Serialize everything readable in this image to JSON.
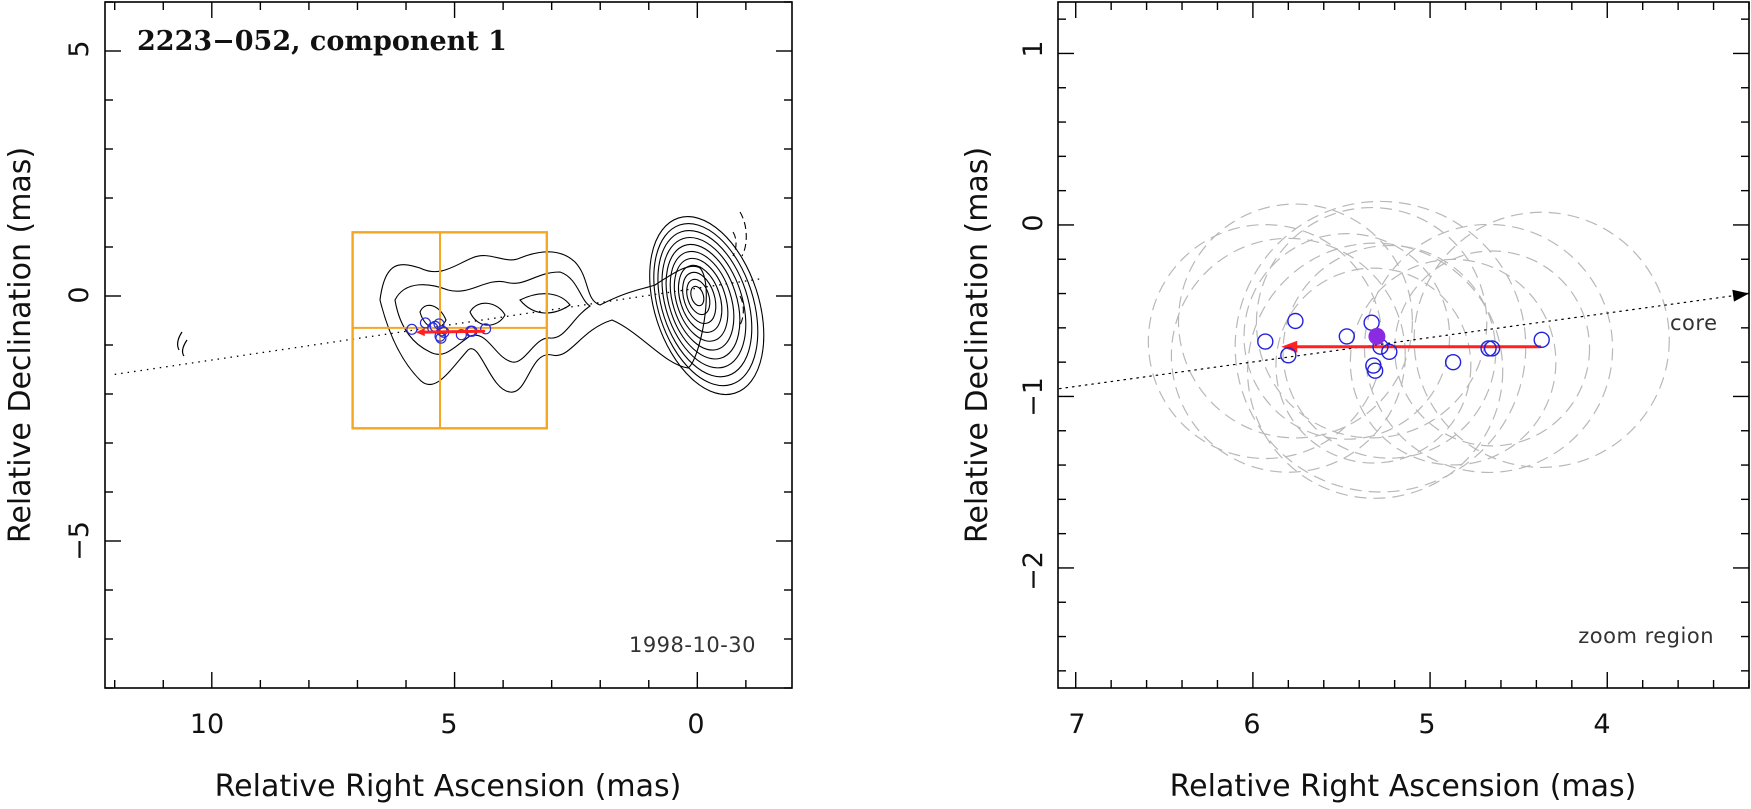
{
  "chart_data": [
    {
      "type": "contour",
      "title": "2223−052, component 1",
      "date": "1998-10-30",
      "xlabel": "Relative Right Ascension (mas)",
      "ylabel": "Relative Declination (mas)",
      "xlim": [
        12.2,
        -1.95
      ],
      "ylim": [
        -8.0,
        6.0
      ],
      "xticks": [
        10,
        5,
        0
      ],
      "xtick_labels": [
        "10",
        "5",
        "0"
      ],
      "yticks": [
        5,
        0,
        -5
      ],
      "ytick_labels": [
        "5",
        "0",
        "−5"
      ],
      "core_position": [
        0,
        0
      ],
      "jet_axis": {
        "from": [
          12.0,
          -1.6
        ],
        "to": [
          -1.3,
          0.35
        ]
      },
      "zoom_box": {
        "x": [
          7.1,
          3.1
        ],
        "y": [
          -2.7,
          1.3
        ],
        "crosshair": [
          5.3,
          -0.65
        ]
      },
      "component_positions": [
        [
          5.88,
          -0.68
        ],
        [
          5.6,
          -0.55
        ],
        [
          5.45,
          -0.65
        ],
        [
          5.4,
          -0.62
        ],
        [
          5.32,
          -0.57
        ],
        [
          5.3,
          -0.82
        ],
        [
          5.28,
          -0.86
        ],
        [
          5.26,
          -0.71
        ],
        [
          5.22,
          -0.74
        ],
        [
          4.86,
          -0.79
        ],
        [
          4.67,
          -0.72
        ],
        [
          4.64,
          -0.72
        ],
        [
          4.36,
          -0.67
        ]
      ],
      "motion_vector": {
        "from": [
          4.4,
          -0.72
        ],
        "to": [
          5.8,
          -0.74
        ],
        "color": "#ff2020"
      }
    },
    {
      "type": "scatter",
      "annotation_core": "core",
      "annotation_region": "zoom region",
      "xlabel": "Relative Right Ascension (mas)",
      "ylabel": "Relative Declination (mas)",
      "xlim": [
        7.1,
        3.2
      ],
      "ylim": [
        -2.7,
        1.3
      ],
      "xticks": [
        7,
        6,
        5,
        4
      ],
      "xtick_labels": [
        "7",
        "6",
        "5",
        "4"
      ],
      "yticks": [
        1,
        0,
        -1,
        -2
      ],
      "ytick_labels": [
        "1",
        "0",
        "−1",
        "−2"
      ],
      "points": [
        {
          "ra": 5.93,
          "dec": -0.68
        },
        {
          "ra": 5.8,
          "dec": -0.76
        },
        {
          "ra": 5.76,
          "dec": -0.56
        },
        {
          "ra": 5.47,
          "dec": -0.65
        },
        {
          "ra": 5.33,
          "dec": -0.57
        },
        {
          "ra": 5.32,
          "dec": -0.82
        },
        {
          "ra": 5.31,
          "dec": -0.85
        },
        {
          "ra": 5.28,
          "dec": -0.71
        },
        {
          "ra": 5.23,
          "dec": -0.74
        },
        {
          "ra": 4.87,
          "dec": -0.8
        },
        {
          "ra": 4.67,
          "dec": -0.72
        },
        {
          "ra": 4.65,
          "dec": -0.72
        },
        {
          "ra": 4.37,
          "dec": -0.67
        }
      ],
      "mean_position": {
        "ra": 5.3,
        "dec": -0.65
      },
      "uncertainty_radii_mas": [
        0.66,
        0.66,
        0.66,
        0.58,
        0.65,
        0.55,
        0.72,
        0.82,
        0.6,
        0.58,
        0.7,
        0.55,
        0.72
      ],
      "motion_vector": {
        "from": [
          4.38,
          -0.71
        ],
        "to": [
          5.84,
          -0.71
        ],
        "color": "#ff2020"
      },
      "jet_axis": {
        "from": [
          7.2,
          -0.97
        ],
        "to": [
          3.2,
          -0.4
        ]
      }
    }
  ]
}
